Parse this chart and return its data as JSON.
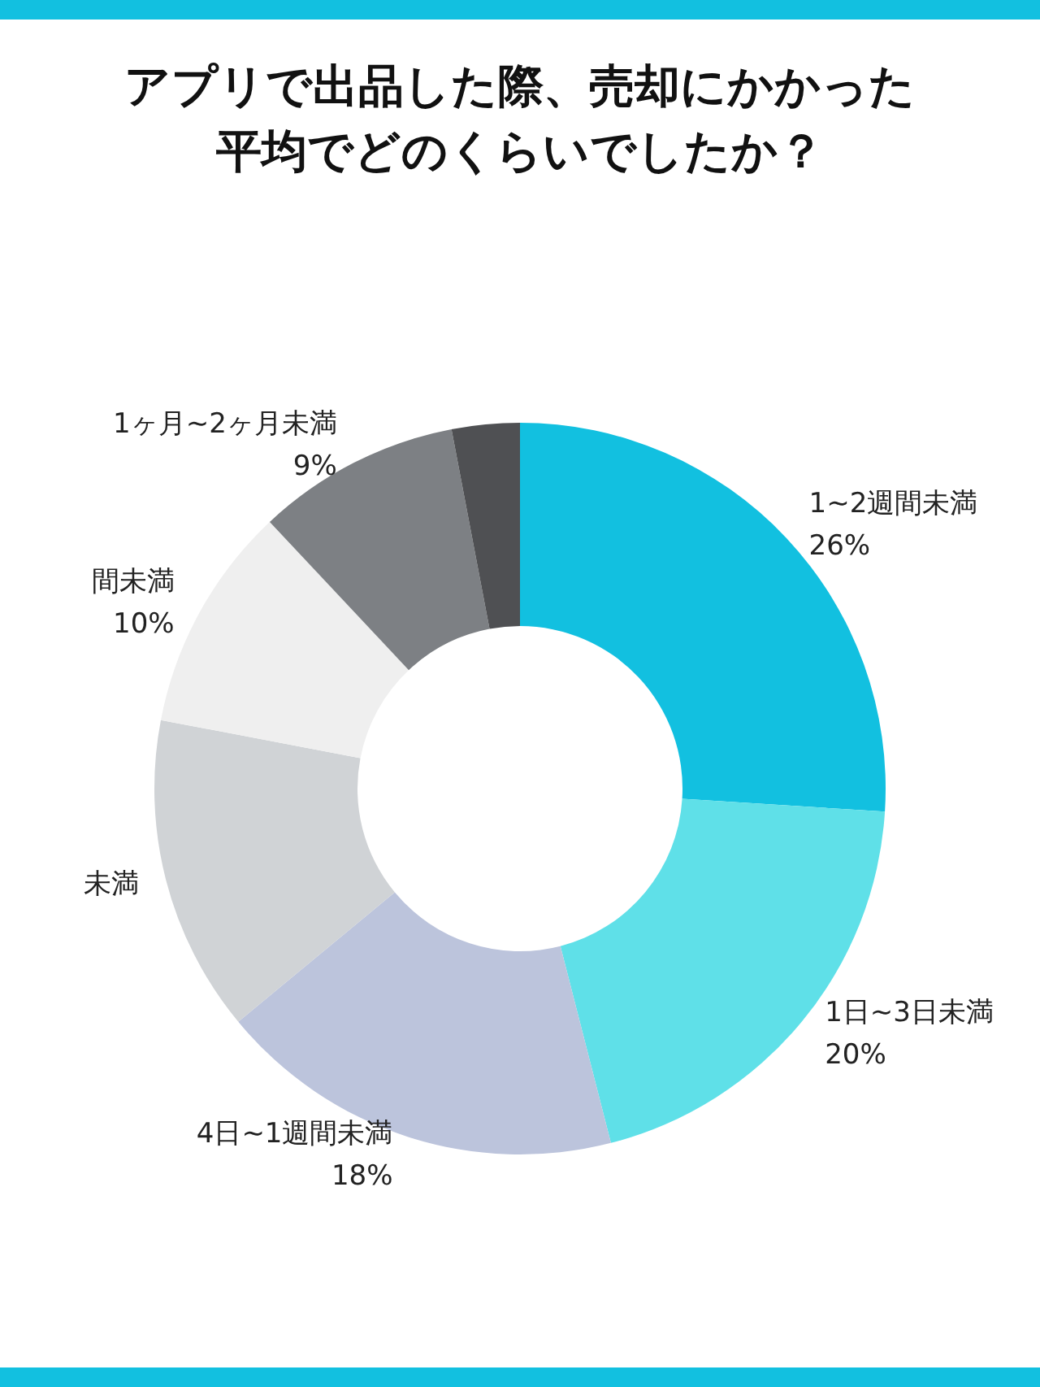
{
  "chart_data": {
    "type": "donut",
    "title": "アプリで出品した際、売却にかかった平均でどのくらいでしたか？",
    "categories": [
      "1~2週間未満",
      "1日~3日未満",
      "4日~1週間未満",
      "未満",
      "間未満",
      "1ヶ月~2ヶ月未満",
      null
    ],
    "values": [
      26,
      20,
      18,
      14,
      10,
      9,
      3
    ],
    "value_labels": [
      "26%",
      "20%",
      "18%",
      null,
      "10%",
      "9%",
      null
    ],
    "colors": [
      "#12c0e0",
      "#5fe0e8",
      "#bcc4dc",
      "#d0d3d6",
      "#efefef",
      "#7d8084",
      "#4f5053"
    ]
  }
}
